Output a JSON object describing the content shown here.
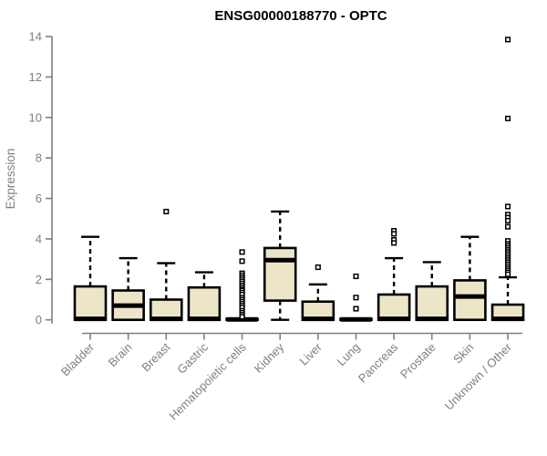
{
  "chart_data": {
    "type": "boxplot",
    "title": "ENSG00000188770 - OPTC",
    "ylabel": "Expression",
    "xlabel": "",
    "ylim": [
      0,
      14
    ],
    "yticks": [
      0,
      2,
      4,
      6,
      8,
      10,
      12,
      14
    ],
    "grid": false,
    "legend_position": "none",
    "categories": [
      "Bladder",
      "Brain",
      "Breast",
      "Gastric",
      "Hematopoietic cells",
      "Kidney",
      "Liver",
      "Lung",
      "Pancreas",
      "Prostate",
      "Skin",
      "Unknown / Other"
    ],
    "series": [
      {
        "label": "Bladder",
        "whisker_low": 0,
        "q1": 0,
        "median": 0.05,
        "q3": 1.65,
        "whisker_high": 4.1,
        "outliers": []
      },
      {
        "label": "Brain",
        "whisker_low": 0,
        "q1": 0,
        "median": 0.7,
        "q3": 1.45,
        "whisker_high": 3.05,
        "outliers": []
      },
      {
        "label": "Breast",
        "whisker_low": 0,
        "q1": 0,
        "median": 0.05,
        "q3": 1.0,
        "whisker_high": 2.8,
        "outliers": [
          5.35
        ]
      },
      {
        "label": "Gastric",
        "whisker_low": 0,
        "q1": 0,
        "median": 0.05,
        "q3": 1.6,
        "whisker_high": 2.35,
        "outliers": []
      },
      {
        "label": "Hematopoietic cells",
        "whisker_low": 0,
        "q1": 0,
        "median": 0.02,
        "q3": 0.05,
        "whisker_high": 0.05,
        "outliers": [
          3.35,
          2.9,
          2.3,
          2.2,
          2.1,
          2.0,
          1.9,
          1.8,
          1.7,
          1.6,
          1.5,
          1.45,
          1.35,
          1.25,
          1.1,
          1.0,
          0.9,
          0.8,
          0.7,
          0.6,
          0.45,
          0.35,
          0.25,
          0.15
        ]
      },
      {
        "label": "Kidney",
        "whisker_low": 0,
        "q1": 0.95,
        "median": 2.95,
        "q3": 3.55,
        "whisker_high": 5.35,
        "outliers": []
      },
      {
        "label": "Liver",
        "whisker_low": 0,
        "q1": 0,
        "median": 0.05,
        "q3": 0.9,
        "whisker_high": 1.75,
        "outliers": [
          2.6
        ]
      },
      {
        "label": "Lung",
        "whisker_low": 0,
        "q1": 0,
        "median": 0.02,
        "q3": 0.05,
        "whisker_high": 0.05,
        "outliers": [
          2.15,
          1.1,
          0.55
        ]
      },
      {
        "label": "Pancreas",
        "whisker_low": 0,
        "q1": 0,
        "median": 0.05,
        "q3": 1.25,
        "whisker_high": 3.05,
        "outliers": [
          4.4,
          4.25,
          3.95,
          3.8
        ]
      },
      {
        "label": "Prostate",
        "whisker_low": 0,
        "q1": 0,
        "median": 0.05,
        "q3": 1.65,
        "whisker_high": 2.85,
        "outliers": []
      },
      {
        "label": "Skin",
        "whisker_low": 0,
        "q1": 0,
        "median": 1.15,
        "q3": 1.95,
        "whisker_high": 4.1,
        "outliers": []
      },
      {
        "label": "Unknown / Other",
        "whisker_low": 0,
        "q1": 0,
        "median": 0.05,
        "q3": 0.75,
        "whisker_high": 2.1,
        "outliers": [
          13.85,
          9.95,
          5.6,
          5.2,
          5.05,
          4.9,
          4.6,
          3.9,
          3.75,
          3.65,
          3.55,
          3.45,
          3.35,
          3.25,
          3.15,
          3.05,
          2.95,
          2.85,
          2.75,
          2.65,
          2.55,
          2.45,
          2.35,
          2.25
        ]
      }
    ]
  },
  "colors": {
    "background": "#ffffff",
    "box_fill": "#ece5c8",
    "box_stroke": "#000000",
    "median": "#000000",
    "whisker": "#000000",
    "outlier_stroke": "#000000",
    "outlier_fill": "#ffffff",
    "axis": "#7f7f7f",
    "tick_label": "#7f7f7f",
    "title": "#000000"
  }
}
